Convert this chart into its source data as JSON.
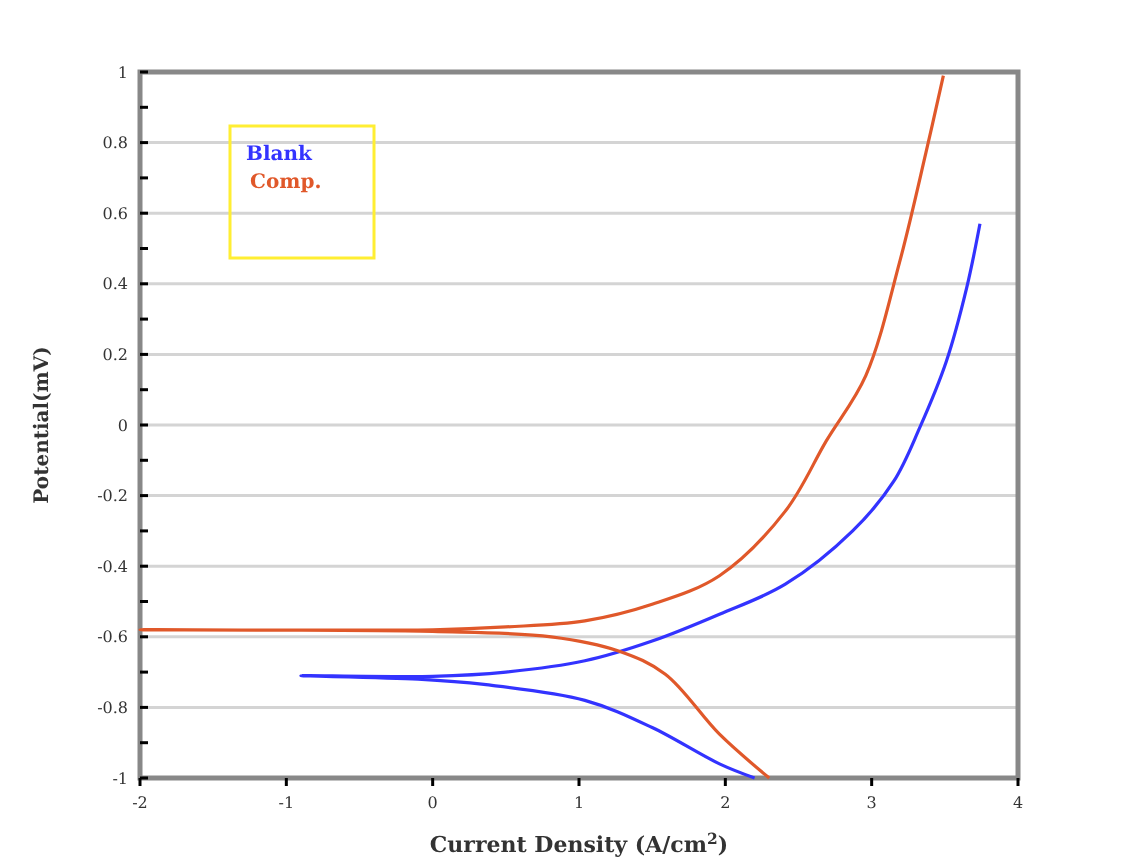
{
  "chart_data": {
    "type": "line",
    "xlabel": "Current Density (A/cm$^{2}$)",
    "ylabel": "Potential(mV)",
    "xlim": [
      -2,
      4
    ],
    "xticks": [
      -2,
      -1,
      0,
      1,
      2,
      3,
      4
    ],
    "ylim": [
      -1,
      1
    ],
    "yticks": [
      -1,
      {
        "value": -0.9,
        "label": null
      },
      -0.8,
      {
        "value": -0.7,
        "label": null
      },
      -0.6,
      {
        "value": -0.5,
        "label": null
      },
      -0.4,
      {
        "value": -0.3,
        "label": null
      },
      -0.2,
      {
        "value": -0.1,
        "label": null
      },
      0,
      {
        "value": 0.1,
        "label": null
      },
      0.2,
      {
        "value": 0.3,
        "label": null
      },
      0.4,
      {
        "value": 0.5,
        "label": null
      },
      0.6,
      {
        "value": 0.7,
        "label": null
      },
      0.8,
      {
        "value": 0.9,
        "label": null
      },
      1
    ],
    "grid": "y",
    "legend": "top left",
    "series": [
      {
        "name": "Blank",
        "color": "#3333ff",
        "x": [
          2.2,
          1.96,
          1.5,
          1.04,
          0.35,
          -0.1,
          -0.9,
          0,
          0.5,
          1.04,
          1.5,
          1.96,
          2.41,
          2.87,
          3.15,
          3.33,
          3.51,
          3.65,
          3.74
        ],
        "values": [
          -1,
          -0.96,
          -0.857,
          -0.78,
          -0.735,
          -0.72,
          -0.71,
          -0.712,
          -0.7,
          -0.668,
          -0.612,
          -0.536,
          -0.451,
          -0.3,
          -0.16,
          -0.006,
          0.18,
          0.39,
          0.57
        ]
      },
      {
        "name": "Comp.",
        "color": "#e0582a",
        "x": [
          2.3,
          1.96,
          1.59,
          1.27,
          0.81,
          0,
          -2,
          0,
          0.5,
          1.04,
          1.5,
          1.96,
          2.41,
          2.69,
          2.96,
          3.19,
          3.37,
          3.49
        ],
        "values": [
          -1,
          -0.876,
          -0.706,
          -0.64,
          -0.6,
          -0.585,
          -0.58,
          -0.58,
          -0.572,
          -0.555,
          -0.508,
          -0.427,
          -0.244,
          -0.045,
          0.14,
          0.46,
          0.77,
          0.99
        ]
      }
    ]
  }
}
